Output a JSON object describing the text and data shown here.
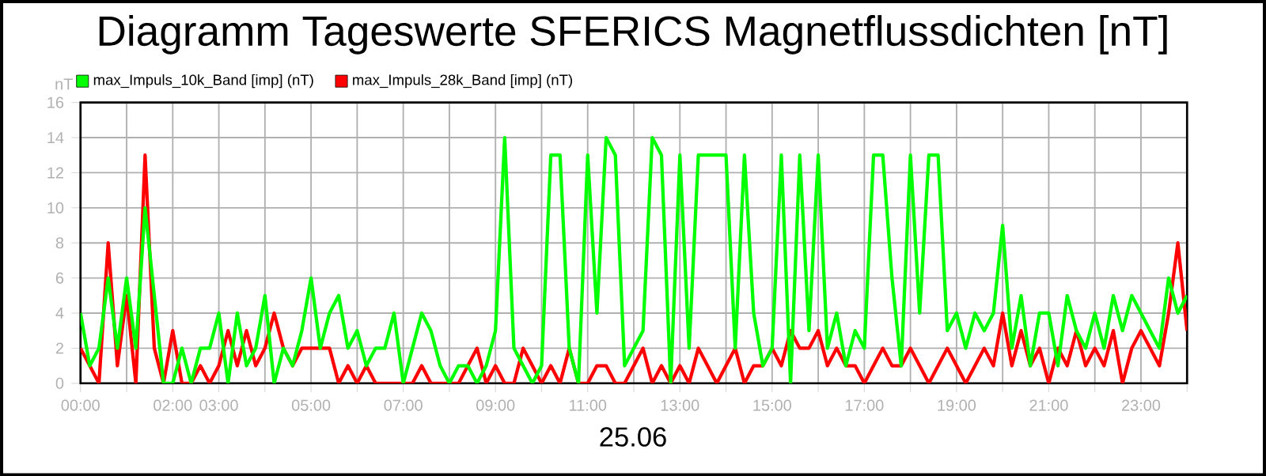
{
  "chart_data": {
    "type": "line",
    "title": "Diagramm Tageswerte SFERICS Magnetflussdichten [nT]",
    "xlabel": "25.06",
    "ylabel": "nT",
    "x": [
      0,
      0.2,
      0.4,
      0.6,
      0.8,
      1,
      1.2,
      1.4,
      1.6,
      1.8,
      2,
      2.2,
      2.4,
      2.6,
      2.8,
      3,
      3.2,
      3.4,
      3.6,
      3.8,
      4,
      4.2,
      4.4,
      4.6,
      4.8,
      5,
      5.2,
      5.4,
      5.6,
      5.8,
      6,
      6.2,
      6.4,
      6.6,
      6.8,
      7,
      7.2,
      7.4,
      7.6,
      7.8,
      8,
      8.2,
      8.4,
      8.6,
      8.8,
      9,
      9.2,
      9.4,
      9.6,
      9.8,
      10,
      10.2,
      10.4,
      10.6,
      10.8,
      11,
      11.2,
      11.4,
      11.6,
      11.8,
      12,
      12.2,
      12.4,
      12.6,
      12.8,
      13,
      13.2,
      13.4,
      13.6,
      13.8,
      14,
      14.2,
      14.4,
      14.6,
      14.8,
      15,
      15.2,
      15.4,
      15.6,
      15.8,
      16,
      16.2,
      16.4,
      16.6,
      16.8,
      17,
      17.2,
      17.4,
      17.6,
      17.8,
      18,
      18.2,
      18.4,
      18.6,
      18.8,
      19,
      19.2,
      19.4,
      19.6,
      19.8,
      20,
      20.2,
      20.4,
      20.6,
      20.8,
      21,
      21.2,
      21.4,
      21.6,
      21.8,
      22,
      22.2,
      22.4,
      22.6,
      22.8,
      23,
      23.2,
      23.4,
      23.6,
      23.8,
      24
    ],
    "series": [
      {
        "name": "max_Impuls_10k_Band [imp] (nT)",
        "color": "#00ff00",
        "values": [
          4,
          1,
          2,
          6,
          2,
          6,
          2,
          10,
          5,
          0,
          0,
          2,
          0,
          2,
          2,
          4,
          0,
          4,
          1,
          2,
          5,
          0,
          2,
          1,
          3,
          6,
          2,
          4,
          5,
          2,
          3,
          1,
          2,
          2,
          4,
          0,
          2,
          4,
          3,
          1,
          0,
          1,
          1,
          0,
          1,
          3,
          14,
          2,
          1,
          0,
          1,
          13,
          13,
          2,
          0,
          13,
          4,
          14,
          13,
          1,
          2,
          3,
          14,
          13,
          0,
          13,
          2,
          13,
          13,
          13,
          13,
          2,
          13,
          4,
          1,
          2,
          13,
          0,
          13,
          3,
          13,
          2,
          4,
          1,
          3,
          2,
          13,
          13,
          6,
          1,
          13,
          4,
          13,
          13,
          3,
          4,
          2,
          4,
          3,
          4,
          9,
          2,
          5,
          1,
          4,
          4,
          1,
          5,
          3,
          2,
          4,
          2,
          5,
          3,
          5,
          4,
          3,
          2,
          6,
          4,
          5
        ]
      },
      {
        "name": "max_Impuls_28k_Band [imp] (nT)",
        "color": "#ff0000",
        "values": [
          2,
          1,
          0,
          8,
          1,
          5,
          0,
          13,
          2,
          0,
          3,
          0,
          0,
          1,
          0,
          1,
          3,
          1,
          3,
          1,
          2,
          4,
          2,
          1,
          2,
          2,
          2,
          2,
          0,
          1,
          0,
          1,
          0,
          0,
          0,
          0,
          0,
          1,
          0,
          0,
          0,
          0,
          1,
          2,
          0,
          1,
          0,
          0,
          2,
          1,
          0,
          1,
          0,
          2,
          0,
          0,
          1,
          1,
          0,
          0,
          1,
          2,
          0,
          1,
          0,
          1,
          0,
          2,
          1,
          0,
          1,
          2,
          0,
          1,
          1,
          2,
          1,
          3,
          2,
          2,
          3,
          1,
          2,
          1,
          1,
          0,
          1,
          2,
          1,
          1,
          2,
          1,
          0,
          1,
          2,
          1,
          0,
          1,
          2,
          1,
          4,
          1,
          3,
          1,
          2,
          0,
          2,
          1,
          3,
          1,
          2,
          1,
          3,
          0,
          2,
          3,
          2,
          1,
          4,
          8,
          3
        ]
      }
    ],
    "xlim": [
      0,
      24
    ],
    "xticks": [
      {
        "value": 0,
        "label": "00:00"
      },
      {
        "value": 1,
        "label": null
      },
      {
        "value": 2,
        "label": "02:00"
      },
      {
        "value": 3,
        "label": "03:00"
      },
      {
        "value": 4,
        "label": null
      },
      {
        "value": 5,
        "label": "05:00"
      },
      {
        "value": 6,
        "label": null
      },
      {
        "value": 7,
        "label": "07:00"
      },
      {
        "value": 8,
        "label": null
      },
      {
        "value": 9,
        "label": "09:00"
      },
      {
        "value": 10,
        "label": null
      },
      {
        "value": 11,
        "label": "11:00"
      },
      {
        "value": 12,
        "label": null
      },
      {
        "value": 13,
        "label": "13:00"
      },
      {
        "value": 14,
        "label": null
      },
      {
        "value": 15,
        "label": "15:00"
      },
      {
        "value": 16,
        "label": null
      },
      {
        "value": 17,
        "label": "17:00"
      },
      {
        "value": 18,
        "label": null
      },
      {
        "value": 19,
        "label": "19:00"
      },
      {
        "value": 20,
        "label": null
      },
      {
        "value": 21,
        "label": "21:00"
      },
      {
        "value": 22,
        "label": null
      },
      {
        "value": 23,
        "label": "23:00"
      },
      {
        "value": 24,
        "label": null
      }
    ],
    "ylim": [
      0,
      16
    ],
    "yticks": [
      0,
      2,
      4,
      6,
      8,
      10,
      12,
      14,
      16
    ],
    "grid": true,
    "legend": "top left",
    "marker": "none",
    "line_style": "solid"
  }
}
